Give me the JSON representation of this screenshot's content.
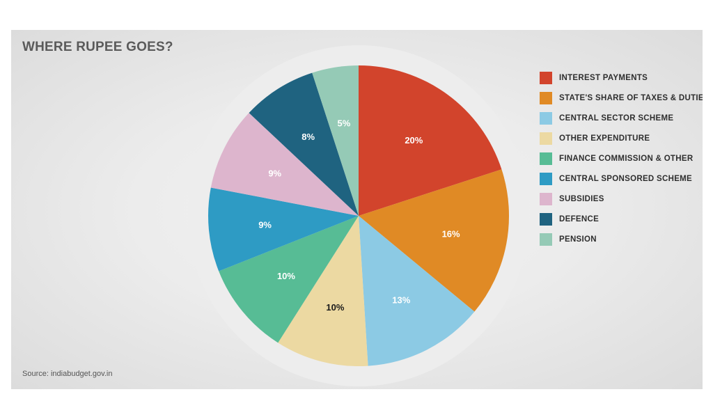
{
  "header": {
    "title": "WHERE RUPEE GOES?"
  },
  "footer": {
    "source": "Source: indiabudget.gov.in"
  },
  "chart_data": {
    "type": "pie",
    "title": "WHERE RUPEE GOES?",
    "legend_position": "right",
    "slices": [
      {
        "label": "INTEREST PAYMENTS",
        "value": 20,
        "display": "20%",
        "color": "#d2442c",
        "label_color": "#ffffff"
      },
      {
        "label": "STATE'S SHARE OF TAXES & DUTIES",
        "value": 16,
        "display": "16%",
        "color": "#e08a25",
        "label_color": "#ffffff"
      },
      {
        "label": "CENTRAL SECTOR SCHEME",
        "value": 13,
        "display": "13%",
        "color": "#8ccae4",
        "label_color": "#ffffff"
      },
      {
        "label": "OTHER EXPENDITURE",
        "value": 10,
        "display": "10%",
        "color": "#ecd9a2",
        "label_color": "#1a1a1a"
      },
      {
        "label": "FINANCE COMMISSION & OTHER",
        "value": 10,
        "display": "10%",
        "color": "#57bc95",
        "label_color": "#ffffff"
      },
      {
        "label": "CENTRAL SPONSORED SCHEME",
        "value": 9,
        "display": "9%",
        "color": "#2e9bc4",
        "label_color": "#ffffff"
      },
      {
        "label": "SUBSIDIES",
        "value": 9,
        "display": "9%",
        "color": "#ddb5cd",
        "label_color": "#ffffff"
      },
      {
        "label": "DEFENCE",
        "value": 8,
        "display": "8%",
        "color": "#1f6380",
        "label_color": "#ffffff"
      },
      {
        "label": "PENSION",
        "value": 5,
        "display": "5%",
        "color": "#95cab6",
        "label_color": "#ffffff"
      }
    ]
  }
}
